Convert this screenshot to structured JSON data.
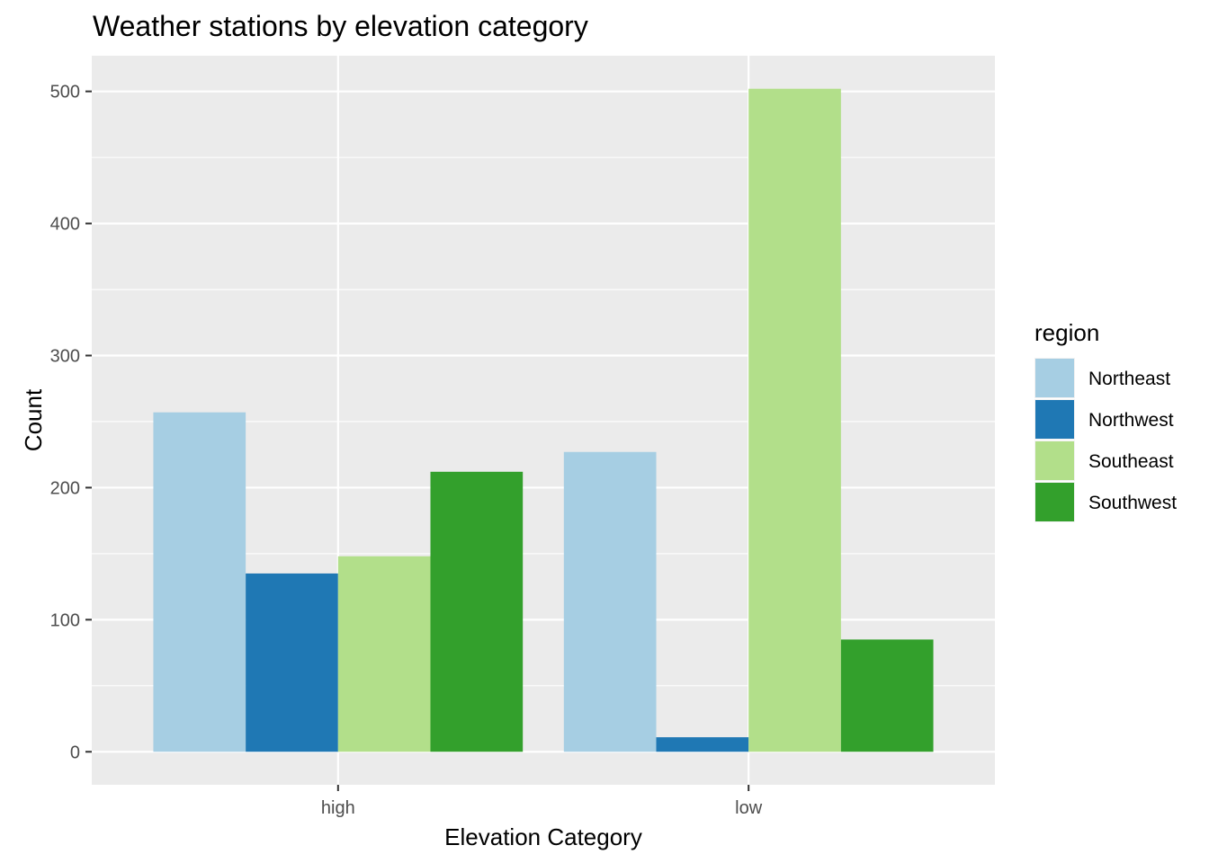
{
  "chart_data": {
    "type": "bar",
    "title": "Weather stations by elevation category",
    "xlabel": "Elevation Category",
    "ylabel": "Count",
    "categories": [
      "high",
      "low"
    ],
    "series": [
      {
        "name": "Northeast",
        "color": "#A6CEE3",
        "values": [
          257,
          227
        ]
      },
      {
        "name": "Northwest",
        "color": "#1F78B4",
        "values": [
          135,
          11
        ]
      },
      {
        "name": "Southeast",
        "color": "#B2DF8A",
        "values": [
          148,
          502
        ]
      },
      {
        "name": "Southwest",
        "color": "#33A02C",
        "values": [
          212,
          85
        ]
      }
    ],
    "ylim": [
      -25,
      527
    ],
    "yticks": [
      0,
      100,
      200,
      300,
      400,
      500
    ],
    "grid": true,
    "legend": {
      "title": "region",
      "position": "right"
    },
    "panel_background": "#EBEBEB"
  }
}
